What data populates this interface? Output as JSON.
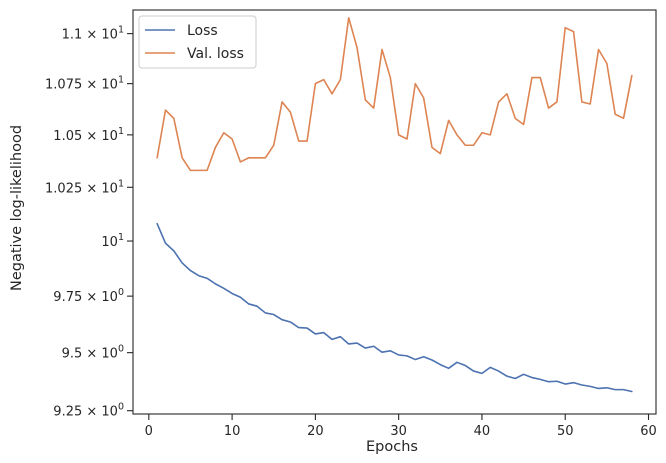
{
  "chart_data": {
    "type": "line",
    "xlabel": "Epochs",
    "ylabel": "Negative log-likelihood",
    "xlim": [
      -1.9,
      60.9
    ],
    "ylim": [
      9.236,
      11.12
    ],
    "yscale": "log",
    "grid": false,
    "legend_position": "top-left",
    "x_ticks": [
      0,
      10,
      20,
      30,
      40,
      50,
      60
    ],
    "y_ticks": [
      {
        "value": 9.25,
        "base": "9.25",
        "sup": "0",
        "label": "9.25 × 10^0"
      },
      {
        "value": 9.5,
        "base": "9.5",
        "sup": "0",
        "label": "9.5 × 10^0"
      },
      {
        "value": 9.75,
        "base": "9.75",
        "sup": "0",
        "label": "9.75 × 10^0"
      },
      {
        "value": 10.0,
        "base": "10",
        "sup": "1",
        "label": "10^1"
      },
      {
        "value": 10.25,
        "base": "1.025",
        "sup": "1",
        "label": "1.025 × 10^1"
      },
      {
        "value": 10.5,
        "base": "1.05",
        "sup": "1",
        "label": "1.05 × 10^1"
      },
      {
        "value": 10.75,
        "base": "1.075",
        "sup": "1",
        "label": "1.075 × 10^1"
      },
      {
        "value": 11.0,
        "base": "1.1",
        "sup": "1",
        "label": "1.1 × 10^1"
      }
    ],
    "x": [
      1,
      2,
      3,
      4,
      5,
      6,
      7,
      8,
      9,
      10,
      11,
      12,
      13,
      14,
      15,
      16,
      17,
      18,
      19,
      20,
      21,
      22,
      23,
      24,
      25,
      26,
      27,
      28,
      29,
      30,
      31,
      32,
      33,
      34,
      35,
      36,
      37,
      38,
      39,
      40,
      41,
      42,
      43,
      44,
      45,
      46,
      47,
      48,
      49,
      50,
      51,
      52,
      53,
      54,
      55,
      56,
      57,
      58
    ],
    "series": [
      {
        "name": "Loss",
        "color": "#4c72b0",
        "values": [
          10.08,
          9.99,
          9.955,
          9.9,
          9.865,
          9.842,
          9.83,
          9.805,
          9.785,
          9.762,
          9.745,
          9.715,
          9.705,
          9.675,
          9.668,
          9.645,
          9.635,
          9.61,
          9.608,
          9.582,
          9.588,
          9.558,
          9.57,
          9.538,
          9.542,
          9.52,
          9.528,
          9.502,
          9.508,
          9.49,
          9.486,
          9.47,
          9.482,
          9.468,
          9.448,
          9.432,
          9.458,
          9.444,
          9.42,
          9.41,
          9.436,
          9.42,
          9.398,
          9.388,
          9.406,
          9.392,
          9.384,
          9.374,
          9.376,
          9.364,
          9.37,
          9.36,
          9.354,
          9.345,
          9.348,
          9.34,
          9.34,
          9.332
        ]
      },
      {
        "name": "Val. loss",
        "color": "#dd8452",
        "values": [
          10.39,
          10.62,
          10.58,
          10.39,
          10.33,
          10.33,
          10.33,
          10.44,
          10.51,
          10.48,
          10.37,
          10.39,
          10.39,
          10.39,
          10.45,
          10.66,
          10.61,
          10.47,
          10.47,
          10.75,
          10.77,
          10.7,
          10.77,
          11.08,
          10.93,
          10.67,
          10.63,
          10.92,
          10.78,
          10.5,
          10.48,
          10.75,
          10.68,
          10.44,
          10.41,
          10.57,
          10.5,
          10.45,
          10.45,
          10.51,
          10.5,
          10.66,
          10.7,
          10.58,
          10.55,
          10.78,
          10.78,
          10.63,
          10.66,
          11.03,
          11.01,
          10.66,
          10.65,
          10.92,
          10.85,
          10.6,
          10.58,
          10.79
        ]
      }
    ]
  }
}
